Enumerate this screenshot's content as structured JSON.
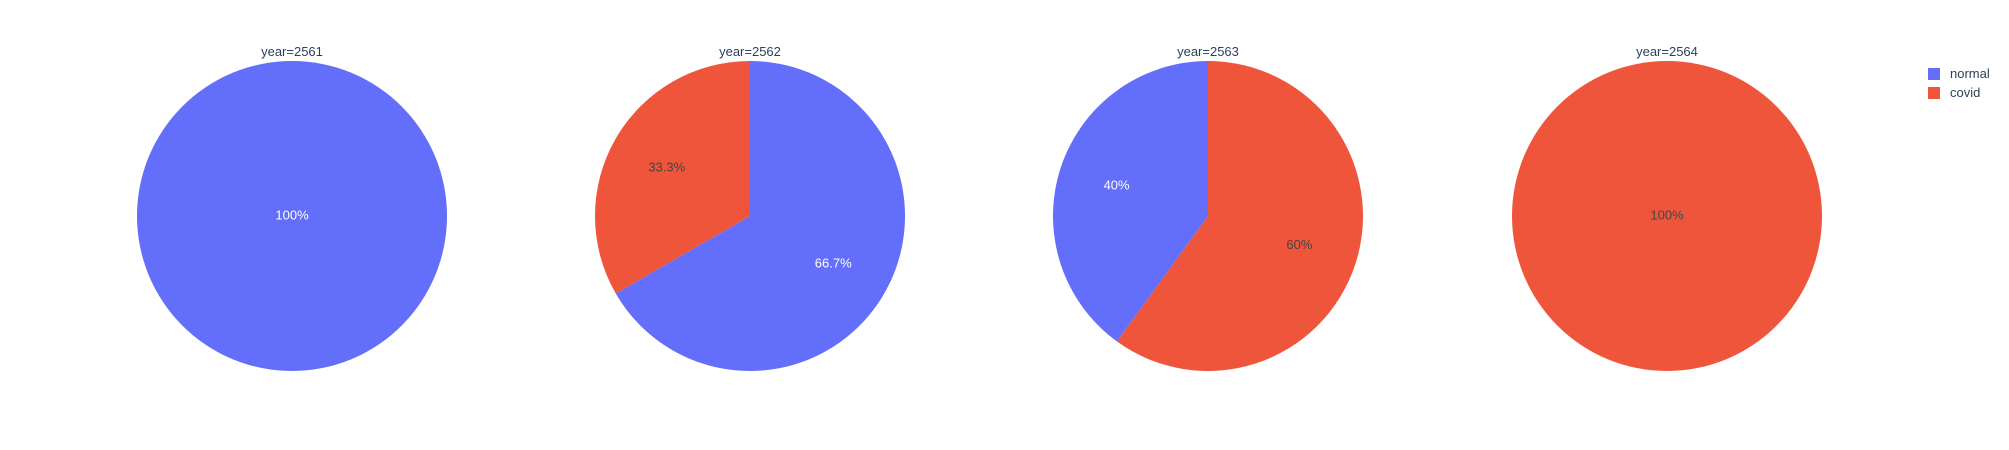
{
  "chart_data": {
    "type": "pie",
    "facet_by": "year",
    "legend": {
      "placement": "top-right",
      "items": [
        {
          "name": "normal",
          "color": "#636efa"
        },
        {
          "name": "covid",
          "color": "#ef553b"
        }
      ]
    },
    "facets": [
      {
        "title": "year=2561",
        "slices": [
          {
            "label": "normal",
            "value": 1,
            "percent_text": "100%"
          }
        ]
      },
      {
        "title": "year=2562",
        "slices": [
          {
            "label": "normal",
            "value": 2,
            "percent_text": "66.7%"
          },
          {
            "label": "covid",
            "value": 1,
            "percent_text": "33.3%"
          }
        ]
      },
      {
        "title": "year=2563",
        "slices": [
          {
            "label": "covid",
            "value": 3,
            "percent_text": "60%"
          },
          {
            "label": "normal",
            "value": 2,
            "percent_text": "40%"
          }
        ]
      },
      {
        "title": "year=2564",
        "slices": [
          {
            "label": "covid",
            "value": 1,
            "percent_text": "100%"
          }
        ]
      }
    ]
  }
}
